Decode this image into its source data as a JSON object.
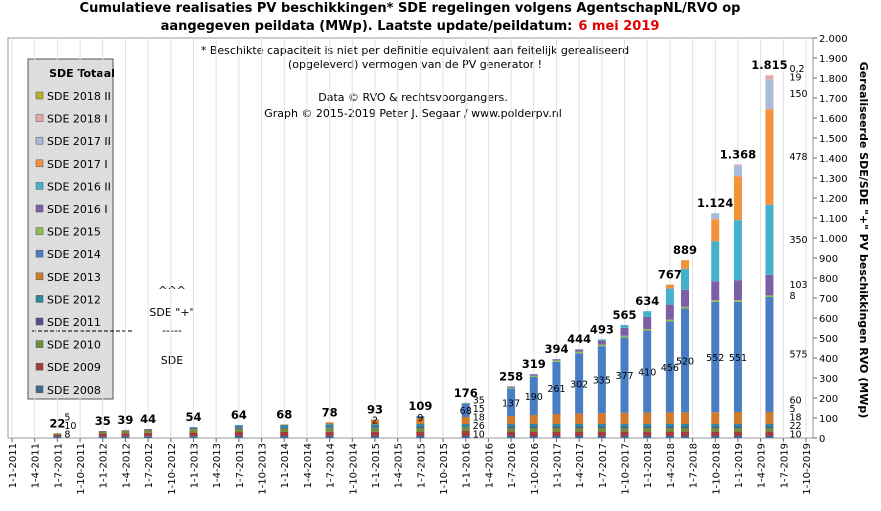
{
  "chart_data": {
    "type": "stacked-bar",
    "title": [
      "Cumulatieve realisaties PV beschikkingen*  SDE regelingen  volgens AgentschapNL/RVO  op",
      "aangegeven peildata (MWp). Laatste update/peildatum:"
    ],
    "title_date": "6 mei 2019",
    "title_date_color": "#e00000",
    "notes": [
      "* Beschikte capaciteit is niet per definitie equivalent aan feitelijk gerealiseerd",
      "(opgeleverd) vermogen van de PV generator !"
    ],
    "credits": [
      "Data © RVO & rechtsvoorgangers.",
      "Graph © 2015-2019 Peter J. Segaar / www.polderpv.nl"
    ],
    "annotations": [
      "^^^",
      "SDE \"+\"",
      "-----",
      "SDE"
    ],
    "ylabel": "Gerealiseerde SDE/SDE \"+\" PV beschikkingen RVO (MWp)",
    "legend_title": "SDE Totaal",
    "ylim": [
      0,
      2000
    ],
    "yticks": [
      0,
      {
        "value": 100,
        "label": "100"
      },
      200,
      300,
      400,
      500,
      600,
      700,
      800,
      900,
      {
        "value": 1000,
        "label": "1.000"
      },
      {
        "value": 1100,
        "label": "1.100"
      },
      {
        "value": 1200,
        "label": "1.200"
      },
      {
        "value": 1300,
        "label": "1.300"
      },
      {
        "value": 1400,
        "label": "1.400"
      },
      {
        "value": 1500,
        "label": "1.500"
      },
      {
        "value": 1600,
        "label": "1.600"
      },
      {
        "value": 1700,
        "label": "1.700"
      },
      {
        "value": 1800,
        "label": "1.800"
      },
      {
        "value": 1900,
        "label": "1.900"
      },
      {
        "value": 2000,
        "label": "2.000"
      }
    ],
    "xlim": [
      "1-1-2011",
      "1-10-2019"
    ],
    "xticks": [
      "1-1-2011",
      "1-4-2011",
      "1-7-2011",
      "1-10-2011",
      "1-1-2012",
      "1-4-2012",
      "1-7-2012",
      "1-10-2012",
      "1-1-2013",
      "1-4-2013",
      "1-7-2013",
      "1-10-2013",
      "1-1-2014",
      "1-4-2014",
      "1-7-2014",
      "1-10-2014",
      "1-1-2015",
      "1-4-2015",
      "1-7-2015",
      "1-10-2015",
      "1-1-2016",
      "1-4-2016",
      "1-7-2016",
      "1-10-2016",
      "1-1-2017",
      "1-4-2017",
      "1-7-2017",
      "1-10-2017",
      "1-1-2018",
      "1-4-2018",
      "1-7-2018",
      "1-10-2018",
      "1-1-2019",
      "1-4-2019",
      "1-7-2019",
      "1-10-2019"
    ],
    "grid": true,
    "x": [
      "1-7-2011",
      "1-1-2012",
      "1-4-2012",
      "1-7-2012",
      "1-1-2013",
      "1-7-2013",
      "1-1-2014",
      "1-7-2014",
      "1-1-2015",
      "1-7-2015",
      "1-1-2016",
      "1-7-2016",
      "1-10-2016",
      "1-1-2017",
      "1-4-2017",
      "1-7-2017",
      "1-10-2017",
      "1-1-2018",
      "1-4-2018",
      "1-6-2018",
      "1-10-2018",
      "1-1-2019",
      "6-5-2019"
    ],
    "totals": {
      "values": [
        22,
        35,
        39,
        44,
        54,
        64,
        68,
        78,
        93,
        109,
        176,
        258,
        319,
        394,
        444,
        493,
        565,
        634,
        767,
        889,
        1124,
        1368,
        1815
      ],
      "value_labels": [
        "22",
        "35",
        "39",
        "44",
        "54",
        "64",
        "68",
        "78",
        "93",
        "109",
        "176",
        "258",
        "319",
        "394",
        "444",
        "493",
        "565",
        "634",
        "767",
        "889",
        "1.124",
        "1.368",
        "1.815"
      ]
    },
    "series": [
      {
        "name": "SDE 2008",
        "color": "#3d6a96",
        "values": [
          8,
          8,
          8,
          9,
          9,
          10,
          10,
          10,
          10,
          10,
          10,
          10,
          10,
          10,
          10,
          10,
          10,
          10,
          10,
          10,
          10,
          10,
          10
        ],
        "value_labels": [
          "8",
          null,
          null,
          null,
          null,
          null,
          null,
          null,
          null,
          null,
          "10",
          null,
          null,
          null,
          null,
          null,
          null,
          null,
          null,
          null,
          null,
          null,
          "10"
        ]
      },
      {
        "name": "SDE 2009",
        "color": "#a33c3a",
        "values": [
          10,
          15,
          16,
          17,
          19,
          20,
          20,
          21,
          21,
          22,
          26,
          22,
          22,
          22,
          22,
          22,
          22,
          22,
          22,
          22,
          22,
          22,
          22
        ],
        "value_labels": [
          "10",
          null,
          null,
          null,
          null,
          null,
          null,
          null,
          null,
          null,
          "26",
          null,
          null,
          null,
          null,
          null,
          null,
          null,
          null,
          null,
          null,
          null,
          "22"
        ]
      },
      {
        "name": "SDE 2010",
        "color": "#6e8e3a",
        "values": [
          5,
          10,
          12,
          14,
          16,
          17,
          17,
          18,
          18,
          18,
          18,
          18,
          18,
          18,
          18,
          18,
          18,
          18,
          18,
          18,
          18,
          18,
          18
        ],
        "value_labels": [
          "5",
          null,
          null,
          null,
          null,
          null,
          null,
          null,
          null,
          null,
          "18",
          null,
          null,
          null,
          null,
          null,
          null,
          null,
          null,
          null,
          null,
          null,
          "18"
        ]
      },
      {
        "name": "SDE 2011",
        "color": "#5b4a8a",
        "values": [
          0,
          2,
          3,
          4,
          5,
          5,
          5,
          5,
          5,
          5,
          1,
          5,
          5,
          5,
          5,
          5,
          5,
          5,
          5,
          5,
          5,
          5,
          5
        ],
        "value_labels": [
          null,
          null,
          null,
          null,
          null,
          null,
          null,
          null,
          null,
          null,
          null,
          null,
          null,
          null,
          null,
          null,
          null,
          null,
          null,
          null,
          null,
          null,
          "5"
        ]
      },
      {
        "name": "SDE 2012",
        "color": "#2e87a0",
        "values": [
          0,
          0,
          0,
          0,
          5,
          12,
          14,
          15,
          15,
          15,
          15,
          15,
          15,
          15,
          15,
          15,
          15,
          15,
          15,
          15,
          15,
          15,
          15
        ],
        "value_labels": [
          null,
          null,
          null,
          null,
          null,
          null,
          null,
          null,
          null,
          null,
          "15",
          null,
          null,
          null,
          null,
          null,
          null,
          null,
          null,
          null,
          null,
          null,
          null
        ]
      },
      {
        "name": "SDE 2013",
        "color": "#d27a2c",
        "values": [
          0,
          0,
          0,
          0,
          0,
          0,
          2,
          9,
          22,
          30,
          35,
          40,
          45,
          50,
          52,
          54,
          56,
          57,
          58,
          58,
          59,
          60,
          60
        ],
        "value_labels": [
          null,
          null,
          null,
          null,
          null,
          null,
          null,
          null,
          null,
          null,
          "35",
          null,
          null,
          null,
          null,
          null,
          null,
          null,
          null,
          null,
          null,
          null,
          "60"
        ]
      },
      {
        "name": "SDE 2014",
        "color": "#4a7ec4",
        "label_color": "#1a1ad8",
        "values": [
          0,
          0,
          0,
          0,
          0,
          0,
          0,
          0,
          2,
          9,
          68,
          137,
          190,
          261,
          302,
          335,
          377,
          410,
          456,
          520,
          552,
          551,
          575
        ],
        "value_labels": [
          null,
          null,
          null,
          null,
          null,
          null,
          null,
          null,
          "2",
          "9",
          "68",
          "137",
          "190",
          "261",
          "302",
          "335",
          "377",
          "410",
          "456",
          "520",
          "552",
          "551",
          "575"
        ]
      },
      {
        "name": "SDE 2015",
        "color": "#93bd4f",
        "values": [
          0,
          0,
          0,
          0,
          0,
          0,
          0,
          0,
          0,
          0,
          3,
          5,
          6,
          7,
          8,
          8,
          8,
          8,
          8,
          8,
          8,
          8,
          8
        ],
        "value_labels": [
          null,
          null,
          null,
          null,
          null,
          null,
          null,
          null,
          null,
          null,
          null,
          null,
          null,
          null,
          null,
          null,
          null,
          null,
          null,
          null,
          null,
          null,
          "8"
        ]
      },
      {
        "name": "SDE 2016 I",
        "color": "#7d5fa8",
        "values": [
          0,
          0,
          0,
          0,
          0,
          0,
          0,
          0,
          0,
          0,
          0,
          6,
          8,
          6,
          10,
          20,
          40,
          60,
          75,
          85,
          95,
          100,
          103
        ],
        "value_labels": [
          null,
          null,
          null,
          null,
          null,
          null,
          null,
          null,
          null,
          null,
          null,
          null,
          null,
          null,
          null,
          null,
          null,
          null,
          null,
          null,
          null,
          null,
          "103"
        ]
      },
      {
        "name": "SDE 2016 II",
        "color": "#43b1cb",
        "values": [
          0,
          0,
          0,
          0,
          0,
          0,
          0,
          0,
          0,
          0,
          0,
          0,
          0,
          0,
          2,
          6,
          14,
          29,
          80,
          105,
          200,
          300,
          350
        ],
        "value_labels": [
          null,
          null,
          null,
          null,
          null,
          null,
          null,
          null,
          null,
          null,
          null,
          null,
          null,
          null,
          null,
          null,
          null,
          null,
          null,
          null,
          null,
          null,
          "350"
        ]
      },
      {
        "name": "SDE 2017 I",
        "color": "#f4923c",
        "values": [
          0,
          0,
          0,
          0,
          0,
          0,
          0,
          0,
          0,
          0,
          0,
          0,
          0,
          0,
          0,
          0,
          0,
          0,
          20,
          43,
          110,
          220,
          478
        ],
        "value_labels": [
          null,
          null,
          null,
          null,
          null,
          null,
          null,
          null,
          null,
          null,
          null,
          null,
          null,
          null,
          null,
          null,
          null,
          null,
          null,
          null,
          null,
          null,
          "478"
        ]
      },
      {
        "name": "SDE 2017 II",
        "color": "#a9bbd9",
        "values": [
          0,
          0,
          0,
          0,
          0,
          0,
          0,
          0,
          0,
          0,
          0,
          0,
          0,
          0,
          0,
          0,
          0,
          0,
          0,
          0,
          30,
          55,
          150
        ],
        "value_labels": [
          null,
          null,
          null,
          null,
          null,
          null,
          null,
          null,
          null,
          null,
          null,
          null,
          null,
          null,
          null,
          null,
          null,
          null,
          null,
          null,
          null,
          null,
          "150"
        ]
      },
      {
        "name": "SDE 2018 I",
        "color": "#e8a7a6",
        "values": [
          0,
          0,
          0,
          0,
          0,
          0,
          0,
          0,
          0,
          0,
          0,
          0,
          0,
          0,
          0,
          0,
          0,
          0,
          0,
          0,
          0,
          4,
          19
        ],
        "value_labels": [
          null,
          null,
          null,
          null,
          null,
          null,
          null,
          null,
          null,
          null,
          null,
          null,
          null,
          null,
          null,
          null,
          null,
          null,
          null,
          null,
          null,
          null,
          "19"
        ]
      },
      {
        "name": "SDE 2018 II",
        "color": "#b3b22a",
        "values": [
          0,
          0,
          0,
          0,
          0,
          0,
          0,
          0,
          0,
          0,
          0,
          0,
          0,
          0,
          0,
          0,
          0,
          0,
          0,
          0,
          0,
          0,
          0.2
        ],
        "value_labels": [
          null,
          null,
          null,
          null,
          null,
          null,
          null,
          null,
          null,
          null,
          null,
          null,
          null,
          null,
          null,
          null,
          null,
          null,
          null,
          null,
          null,
          null,
          "0,2"
        ]
      }
    ]
  }
}
